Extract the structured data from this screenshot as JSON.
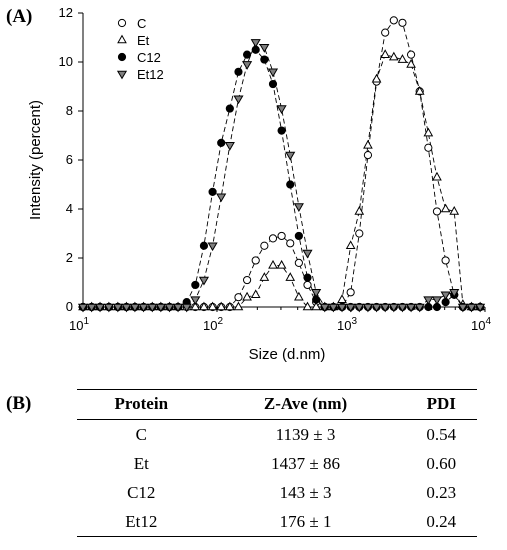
{
  "panel_a_label": "(A)",
  "panel_b_label": "(B)",
  "chart_data": {
    "type": "scatter",
    "xlabel": "Size (d.nm)",
    "ylabel": "Intensity (percent)",
    "xscale": "log",
    "xlim": [
      10,
      10000
    ],
    "ylim": [
      0,
      12
    ],
    "yticks": [
      0,
      2,
      4,
      6,
      8,
      10,
      12
    ],
    "xticks": [
      {
        "value": 10,
        "base": "10",
        "exp": "1"
      },
      {
        "value": 100,
        "base": "10",
        "exp": "2"
      },
      {
        "value": 1000,
        "base": "10",
        "exp": "3"
      },
      {
        "value": 10000,
        "base": "10",
        "exp": "4"
      }
    ],
    "legend_position": "top-left",
    "lines": "dashed",
    "series": [
      {
        "name": "C",
        "marker": "circle-open",
        "x": [
          10,
          11.6,
          13.4,
          15.6,
          18.2,
          21.1,
          24.4,
          28.3,
          32.9,
          38.1,
          44.2,
          51.2,
          59.4,
          68.9,
          79.9,
          92.7,
          107.5,
          124.7,
          144.6,
          167.7,
          194.5,
          225.6,
          261.7,
          303.5,
          352,
          408.3,
          473.6,
          549.3,
          637.1,
          739,
          857.1,
          994.2,
          1153,
          1337.5,
          1551.3,
          1799.4,
          2087,
          2420.8,
          2807.8,
          3256.6,
          3777.4,
          4381.3,
          5081.8,
          5894.4,
          6836.7,
          7929.7,
          9197.5
        ],
        "y": [
          0,
          0,
          0,
          0,
          0,
          0,
          0,
          0,
          0,
          0,
          0,
          0,
          0,
          0,
          0,
          0,
          0,
          0,
          0.4,
          1.1,
          1.9,
          2.5,
          2.8,
          2.9,
          2.6,
          1.8,
          0.9,
          0.2,
          0,
          0,
          0,
          0.6,
          3,
          6.2,
          9.2,
          11.2,
          11.7,
          11.6,
          10.3,
          8.8,
          6.5,
          3.9,
          1.9,
          0.5,
          0,
          0,
          0
        ]
      },
      {
        "name": "Et",
        "marker": "triangle-open",
        "x": [
          10,
          11.6,
          13.4,
          15.6,
          18.2,
          21.1,
          24.4,
          28.3,
          32.9,
          38.1,
          44.2,
          51.2,
          59.4,
          68.9,
          79.9,
          92.7,
          107.5,
          124.7,
          144.6,
          167.7,
          194.5,
          225.6,
          261.7,
          303.5,
          352,
          408.3,
          473.6,
          549.3,
          637.1,
          739,
          857.1,
          994.2,
          1153,
          1337.5,
          1551.3,
          1799.4,
          2087,
          2420.8,
          2807.8,
          3256.6,
          3777.4,
          4381.3,
          5081.8,
          5894.4,
          6836.7,
          7929.7,
          9197.5
        ],
        "y": [
          0,
          0,
          0,
          0,
          0,
          0,
          0,
          0,
          0,
          0,
          0,
          0,
          0,
          0,
          0,
          0,
          0,
          0,
          0,
          0.4,
          0.5,
          1.2,
          1.7,
          1.7,
          1.2,
          0.4,
          0,
          0,
          0,
          0,
          0.3,
          2.5,
          3.9,
          6.6,
          9.3,
          10.3,
          10.2,
          10.1,
          9.9,
          8.8,
          7.1,
          5.3,
          4,
          3.9,
          0.1,
          0,
          0
        ]
      },
      {
        "name": "C12",
        "marker": "circle-filled",
        "x": [
          10,
          11.6,
          13.4,
          15.6,
          18.2,
          21.1,
          24.4,
          28.3,
          32.9,
          38.1,
          44.2,
          51.2,
          59.4,
          68.9,
          79.9,
          92.7,
          107.5,
          124.7,
          144.6,
          167.7,
          194.5,
          225.6,
          261.7,
          303.5,
          352,
          408.3,
          473.6,
          549.3,
          637.1,
          739,
          857.1,
          994.2,
          1153,
          1337.5,
          1551.3,
          1799.4,
          2087,
          2420.8,
          2807.8,
          3256.6,
          3777.4,
          4381.3,
          5081.8,
          5894.4,
          6836.7,
          7929.7,
          9197.5
        ],
        "y": [
          0,
          0,
          0,
          0,
          0,
          0,
          0,
          0,
          0,
          0,
          0,
          0,
          0.2,
          0.9,
          2.5,
          4.7,
          6.7,
          8.1,
          9.6,
          10.3,
          10.5,
          10.1,
          9.1,
          7.2,
          5,
          2.9,
          1.2,
          0.3,
          0,
          0,
          0,
          0,
          0,
          0,
          0,
          0,
          0,
          0,
          0,
          0,
          0,
          0,
          0.2,
          0.5,
          0,
          0,
          0
        ]
      },
      {
        "name": "Et12",
        "marker": "triangle-down-filled",
        "x": [
          10,
          11.6,
          13.4,
          15.6,
          18.2,
          21.1,
          24.4,
          28.3,
          32.9,
          38.1,
          44.2,
          51.2,
          59.4,
          68.9,
          79.9,
          92.7,
          107.5,
          124.7,
          144.6,
          167.7,
          194.5,
          225.6,
          261.7,
          303.5,
          352,
          408.3,
          473.6,
          549.3,
          637.1,
          739,
          857.1,
          994.2,
          1153,
          1337.5,
          1551.3,
          1799.4,
          2087,
          2420.8,
          2807.8,
          3256.6,
          3777.4,
          4381.3,
          5081.8,
          5894.4,
          6836.7,
          7929.7,
          9197.5
        ],
        "y": [
          0,
          0,
          0,
          0,
          0,
          0,
          0,
          0,
          0,
          0,
          0,
          0,
          0,
          0.3,
          1.1,
          2.5,
          4.5,
          6.6,
          8.5,
          9.9,
          10.8,
          10.6,
          9.6,
          8.1,
          6.2,
          4.1,
          2.2,
          0.6,
          0,
          0,
          0,
          0,
          0,
          0,
          0,
          0,
          0,
          0,
          0,
          0,
          0.3,
          0.3,
          0.5,
          0.6,
          0,
          0,
          0
        ]
      }
    ]
  },
  "table": {
    "headers": [
      "Protein",
      "Z-Ave (nm)",
      "PDI"
    ],
    "rows": [
      [
        "C",
        "1139 ± 3",
        "0.54"
      ],
      [
        "Et",
        "1437 ± 86",
        "0.60"
      ],
      [
        "C12",
        "143 ± 3",
        "0.23"
      ],
      [
        "Et12",
        "176 ± 1",
        "0.24"
      ]
    ]
  }
}
